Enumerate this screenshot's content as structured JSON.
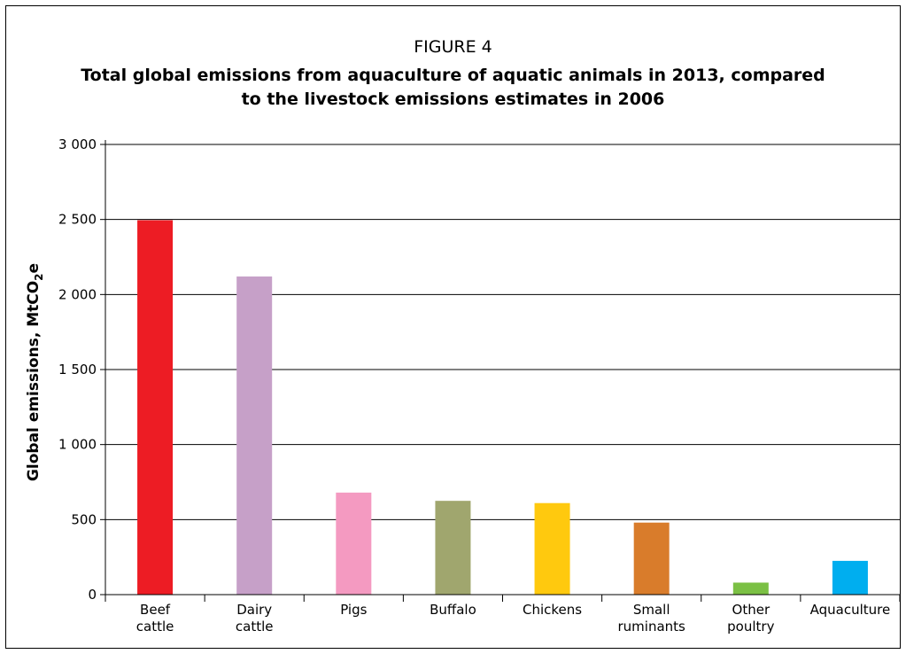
{
  "figure_label": "FIGURE 4",
  "chart_data": {
    "type": "bar",
    "title": "Total global emissions from aquaculture of aquatic animals in 2013, compared\nto the livestock emissions estimates in 2006",
    "ylabel": "Global emissions, MtCO",
    "ylabel_subscript": "2",
    "ylabel_suffix": "e",
    "xlabel": "",
    "ylim": [
      0,
      3000
    ],
    "yticks": [
      0,
      500,
      1000,
      1500,
      2000,
      2500,
      3000
    ],
    "ytick_labels": [
      "0",
      "500",
      "1 000",
      "1 500",
      "2 000",
      "2 500",
      "3 000"
    ],
    "grid": true,
    "categories": [
      [
        "Beef",
        "cattle"
      ],
      [
        "Dairy",
        "cattle"
      ],
      [
        "Pigs"
      ],
      [
        "Buffalo"
      ],
      [
        "Chickens"
      ],
      [
        "Small",
        "ruminants"
      ],
      [
        "Other",
        "poultry"
      ],
      [
        "Aquaculture"
      ]
    ],
    "values": [
      2495,
      2120,
      680,
      625,
      610,
      480,
      80,
      225
    ],
    "colors": [
      "#ed1c24",
      "#c6a0c8",
      "#f49ac1",
      "#a0a66e",
      "#ffc90e",
      "#d97c2b",
      "#7bc044",
      "#00aeef"
    ]
  }
}
